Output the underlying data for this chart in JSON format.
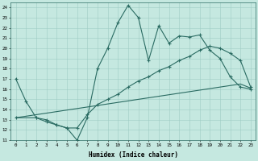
{
  "xlabel": "Humidex (Indice chaleur)",
  "xlim": [
    -0.5,
    23.5
  ],
  "ylim": [
    11,
    24.5
  ],
  "xticks": [
    0,
    1,
    2,
    3,
    4,
    5,
    6,
    7,
    8,
    9,
    10,
    11,
    12,
    13,
    14,
    15,
    16,
    17,
    18,
    19,
    20,
    21,
    22,
    23
  ],
  "yticks": [
    11,
    12,
    13,
    14,
    15,
    16,
    17,
    18,
    19,
    20,
    21,
    22,
    23,
    24
  ],
  "bg_color": "#c5e8e0",
  "grid_color": "#9ecdc4",
  "line_color": "#2a6b62",
  "line1_x": [
    0,
    1,
    2,
    3,
    4,
    5,
    6,
    7,
    8,
    9,
    10,
    11,
    12,
    13,
    14,
    15,
    16,
    17,
    18,
    19,
    20,
    21,
    22,
    23
  ],
  "line1_y": [
    17.0,
    14.8,
    13.2,
    12.8,
    12.5,
    12.2,
    11.0,
    13.2,
    18.0,
    20.0,
    22.5,
    24.2,
    23.0,
    18.8,
    22.2,
    20.5,
    21.2,
    21.1,
    21.3,
    19.8,
    19.0,
    17.2,
    16.2,
    16.0
  ],
  "line2_x": [
    0,
    2,
    3,
    4,
    5,
    6,
    7,
    8,
    9,
    10,
    11,
    12,
    13,
    14,
    15,
    16,
    17,
    18,
    19,
    20,
    21,
    22,
    23
  ],
  "line2_y": [
    13.2,
    13.2,
    13.0,
    12.5,
    12.2,
    12.2,
    13.5,
    14.5,
    15.0,
    15.5,
    16.2,
    16.8,
    17.2,
    17.8,
    18.2,
    18.8,
    19.2,
    19.8,
    20.2,
    20.0,
    19.5,
    18.8,
    16.2
  ],
  "line3_x": [
    0,
    1,
    2,
    3,
    4,
    5,
    6,
    7,
    8,
    9,
    10,
    11,
    12,
    13,
    14,
    15,
    16,
    17,
    18,
    19,
    20,
    21,
    22,
    23
  ],
  "line3_y": [
    13.2,
    13.35,
    13.5,
    13.65,
    13.8,
    13.95,
    14.1,
    14.25,
    14.4,
    14.55,
    14.7,
    14.85,
    15.0,
    15.15,
    15.3,
    15.45,
    15.6,
    15.75,
    15.9,
    16.05,
    16.2,
    16.35,
    16.5,
    16.1
  ]
}
